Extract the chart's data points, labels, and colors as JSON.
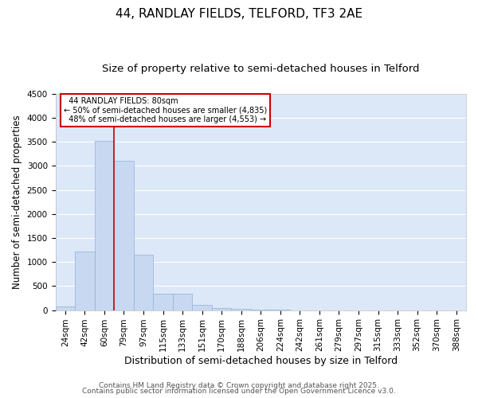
{
  "title": "44, RANDLAY FIELDS, TELFORD, TF3 2AE",
  "subtitle": "Size of property relative to semi-detached houses in Telford",
  "xlabel": "Distribution of semi-detached houses by size in Telford",
  "ylabel": "Number of semi-detached properties",
  "categories": [
    "24sqm",
    "42sqm",
    "60sqm",
    "79sqm",
    "97sqm",
    "115sqm",
    "133sqm",
    "151sqm",
    "170sqm",
    "188sqm",
    "206sqm",
    "224sqm",
    "242sqm",
    "261sqm",
    "279sqm",
    "297sqm",
    "315sqm",
    "333sqm",
    "352sqm",
    "370sqm",
    "388sqm"
  ],
  "values": [
    80,
    1220,
    3520,
    3100,
    1150,
    340,
    340,
    105,
    50,
    28,
    8,
    2,
    0,
    0,
    0,
    0,
    0,
    0,
    0,
    0,
    0
  ],
  "bar_color": "#c8d8f0",
  "bar_edge_color": "#90b0d8",
  "vline_index": 3,
  "annotation_title": "44 RANDLAY FIELDS: 80sqm",
  "annotation_line1": "← 50% of semi-detached houses are smaller (4,835)",
  "annotation_line2": "48% of semi-detached houses are larger (4,553) →",
  "annotation_box_color": "#ffffff",
  "annotation_box_edge_color": "#cc0000",
  "vline_color": "#cc0000",
  "ylim": [
    0,
    4500
  ],
  "yticks": [
    0,
    500,
    1000,
    1500,
    2000,
    2500,
    3000,
    3500,
    4000,
    4500
  ],
  "footer1": "Contains HM Land Registry data © Crown copyright and database right 2025.",
  "footer2": "Contains public sector information licensed under the Open Government Licence v3.0.",
  "bg_color": "#ffffff",
  "plot_bg_color": "#dce8f8",
  "grid_color": "#ffffff",
  "title_fontsize": 11,
  "subtitle_fontsize": 9.5,
  "tick_fontsize": 7.5,
  "ylabel_fontsize": 8.5,
  "xlabel_fontsize": 9,
  "footer_fontsize": 6.5
}
